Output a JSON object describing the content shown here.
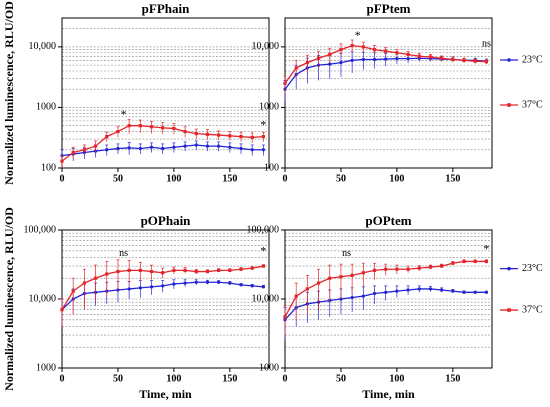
{
  "chart_data": [
    {
      "type": "line",
      "title": "pFPhain",
      "ylabel": "Normalized luminescence, RLU/OD",
      "log_y": true,
      "grid": true,
      "legend": false,
      "x": [
        0,
        10,
        20,
        30,
        40,
        50,
        60,
        70,
        80,
        90,
        100,
        110,
        120,
        130,
        140,
        150,
        160,
        170,
        180
      ],
      "xlim": [
        0,
        185
      ],
      "xticks": [
        0,
        50,
        100,
        150
      ],
      "ylim": [
        100,
        30000
      ],
      "yticks": [
        100,
        1000,
        {
          "value": 10000,
          "label": "10,000"
        }
      ],
      "series": [
        {
          "name": "23°C",
          "color": "#2424d6",
          "values": [
            160,
            170,
            180,
            190,
            200,
            210,
            215,
            210,
            220,
            210,
            220,
            230,
            240,
            230,
            230,
            220,
            210,
            200,
            200
          ],
          "errors": [
            40,
            40,
            40,
            40,
            40,
            40,
            50,
            40,
            40,
            40,
            40,
            40,
            40,
            40,
            40,
            40,
            40,
            40,
            40
          ]
        },
        {
          "name": "37°C",
          "color": "#e3262b",
          "values": [
            130,
            180,
            200,
            230,
            330,
            400,
            500,
            500,
            480,
            460,
            450,
            400,
            370,
            360,
            350,
            340,
            330,
            320,
            330
          ],
          "errors": [
            30,
            40,
            40,
            50,
            60,
            80,
            130,
            120,
            110,
            100,
            90,
            80,
            70,
            70,
            60,
            60,
            60,
            60,
            60
          ]
        }
      ],
      "annotations": [
        {
          "text": "*",
          "x": 55,
          "y": 750
        },
        {
          "text": "*",
          "x": 180,
          "y": 500
        }
      ]
    },
    {
      "type": "line",
      "title": "pFPtem",
      "log_y": true,
      "grid": true,
      "legend": true,
      "x": [
        0,
        10,
        20,
        30,
        40,
        50,
        60,
        70,
        80,
        90,
        100,
        110,
        120,
        130,
        140,
        150,
        160,
        170,
        180
      ],
      "xlim": [
        0,
        185
      ],
      "xticks": [
        0,
        50,
        100,
        150
      ],
      "ylim": [
        100,
        30000
      ],
      "yticks": [
        100,
        1000,
        {
          "value": 10000,
          "label": "10,000"
        }
      ],
      "series": [
        {
          "name": "23°C",
          "color": "#2424d6",
          "values": [
            2000,
            3500,
            4500,
            5000,
            5200,
            5500,
            6000,
            6200,
            6200,
            6300,
            6400,
            6400,
            6500,
            6400,
            6300,
            6200,
            6000,
            6000,
            5800
          ],
          "errors": [
            800,
            1500,
            2000,
            2200,
            2200,
            2300,
            2300,
            2000,
            1800,
            1500,
            1200,
            1000,
            800,
            700,
            600,
            600,
            500,
            500,
            500
          ]
        },
        {
          "name": "37°C",
          "color": "#e3262b",
          "values": [
            2500,
            4500,
            5500,
            6500,
            7500,
            9000,
            10500,
            10000,
            9000,
            8500,
            8000,
            7500,
            7000,
            6800,
            6500,
            6200,
            6000,
            5800,
            5700
          ],
          "errors": [
            800,
            1500,
            1800,
            2000,
            2000,
            2200,
            2500,
            2000,
            1500,
            1200,
            1000,
            900,
            800,
            700,
            600,
            600,
            500,
            500,
            500
          ]
        }
      ],
      "annotations": [
        {
          "text": "*",
          "x": 65,
          "y": 15000
        },
        {
          "text": "ns",
          "x": 180,
          "y": 11000
        }
      ]
    },
    {
      "type": "line",
      "title": "pOPhain",
      "ylabel": "Normalized luminescence, RLU/OD",
      "xlabel": "Time, min",
      "log_y": true,
      "grid": true,
      "legend": false,
      "x": [
        0,
        10,
        20,
        30,
        40,
        50,
        60,
        70,
        80,
        90,
        100,
        110,
        120,
        130,
        140,
        150,
        160,
        170,
        180
      ],
      "xlim": [
        0,
        185
      ],
      "xticks": [
        0,
        50,
        100,
        150
      ],
      "ylim": [
        1000,
        100000
      ],
      "yticks": [
        1000,
        {
          "value": 10000,
          "label": "10,000"
        },
        {
          "value": 100000,
          "label": "100,000"
        }
      ],
      "series": [
        {
          "name": "23°C",
          "color": "#2424d6",
          "values": [
            7000,
            10000,
            12000,
            12500,
            13000,
            13500,
            14000,
            14500,
            15000,
            15500,
            16500,
            17000,
            17500,
            17500,
            17500,
            17000,
            16000,
            15500,
            15000
          ],
          "errors": [
            3000,
            4000,
            4500,
            4500,
            4500,
            4500,
            4000,
            4000,
            3500,
            3000,
            2500,
            2000,
            1500,
            1200,
            1000,
            1000,
            800,
            800,
            800
          ]
        },
        {
          "name": "37°C",
          "color": "#e3262b",
          "values": [
            7000,
            13000,
            17000,
            20000,
            23000,
            25000,
            26000,
            26000,
            25000,
            24000,
            26000,
            26000,
            25000,
            25000,
            26000,
            26000,
            27000,
            28000,
            30000
          ],
          "errors": [
            3000,
            7000,
            10000,
            11000,
            12000,
            12000,
            10000,
            8000,
            6000,
            4000,
            3000,
            2500,
            2000,
            1500,
            1500,
            1500,
            1500,
            1500,
            1500
          ]
        }
      ],
      "annotations": [
        {
          "text": "ns",
          "x": 55,
          "y": 45000
        },
        {
          "text": "*",
          "x": 180,
          "y": 48000
        }
      ]
    },
    {
      "type": "line",
      "title": "pOPtem",
      "xlabel": "Time, min",
      "log_y": true,
      "grid": true,
      "legend": true,
      "x": [
        0,
        10,
        20,
        30,
        40,
        50,
        60,
        70,
        80,
        90,
        100,
        110,
        120,
        130,
        140,
        150,
        160,
        170,
        180
      ],
      "xlim": [
        0,
        185
      ],
      "xticks": [
        0,
        50,
        100,
        150
      ],
      "ylim": [
        1000,
        100000
      ],
      "yticks": [
        1000,
        {
          "value": 10000,
          "label": "10,000"
        },
        {
          "value": 100000,
          "label": "100,000"
        }
      ],
      "series": [
        {
          "name": "23°C",
          "color": "#2424d6",
          "values": [
            5000,
            7500,
            8500,
            9000,
            9500,
            10000,
            10500,
            11000,
            12000,
            12500,
            13000,
            13500,
            14000,
            14000,
            13500,
            13000,
            12500,
            12500,
            12500
          ],
          "errors": [
            2500,
            3500,
            4000,
            4000,
            4000,
            4000,
            4000,
            4000,
            3500,
            3000,
            2500,
            2000,
            1500,
            1200,
            1000,
            800,
            600,
            500,
            500
          ]
        },
        {
          "name": "37°C",
          "color": "#e3262b",
          "values": [
            5500,
            11000,
            14000,
            17000,
            20000,
            21000,
            22000,
            24000,
            26000,
            27000,
            27000,
            27000,
            28000,
            29000,
            30000,
            33000,
            35000,
            35000,
            35000
          ],
          "errors": [
            2500,
            6000,
            8000,
            10000,
            11000,
            11000,
            10000,
            9000,
            7000,
            5000,
            4000,
            3000,
            2500,
            2000,
            2000,
            2000,
            2000,
            2000,
            2000
          ]
        }
      ],
      "annotations": [
        {
          "text": "ns",
          "x": 55,
          "y": 45000
        },
        {
          "text": "*",
          "x": 180,
          "y": 52000
        }
      ]
    }
  ]
}
